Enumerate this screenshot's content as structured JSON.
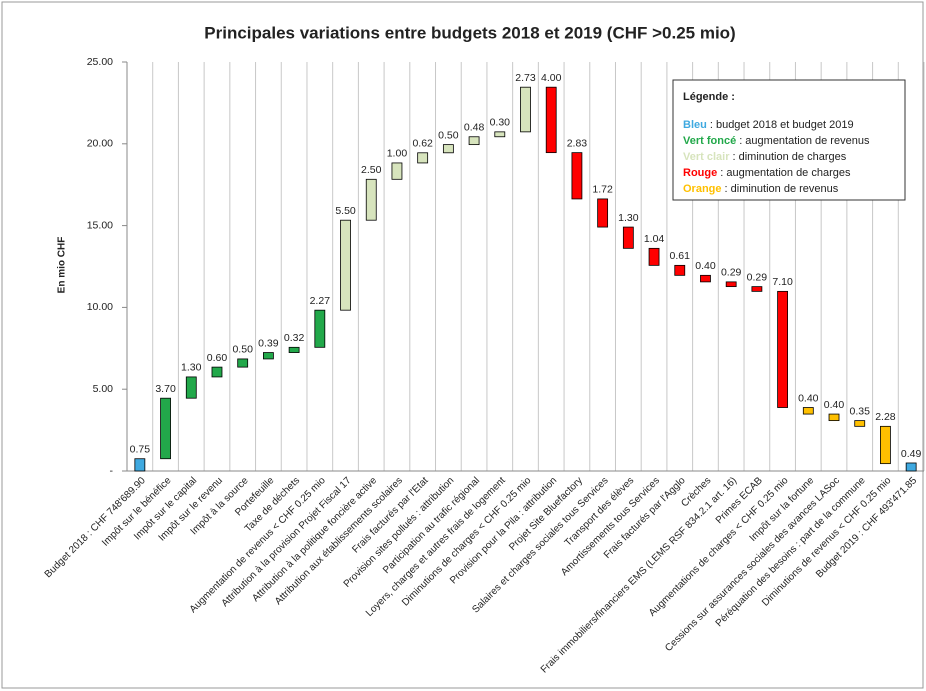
{
  "chart_data": {
    "type": "waterfall",
    "title": "Principales variations entre budgets 2018 et 2019 (CHF >0.25 mio)",
    "y_label": "En mio CHF",
    "categories": [
      "Budget 2018 : CHF 748'689.90",
      "Impôt sur le bénéfice",
      "Impôt sur le capital",
      "Impôt sur le revenu",
      "Impôt à la source",
      "Portefeuille",
      "Taxe de déchets",
      "Augmentation de revenus < CHF 0.25 mio",
      "Attribution à la provision Projet Fiscal 17",
      "Attribution à la politique foncière active",
      "Attribution aux établissements scolaires",
      "Frais facturés par l'Etat",
      "Provision sites pollués : attribution",
      "Participation au trafic régional",
      "Loyers, charges et autres frais de logement",
      "Diminutions de charges < CHF 0.25 mio",
      "Provision pour la Pila : attribution",
      "Projet Site Bluefactory",
      "Salaires et charges sociales tous Services",
      "Transport des élèves",
      "Amortissements tous Services",
      "Frais facturés par l'Agglo",
      "Crèches",
      "Frais immobiliers/financiers EMS (LEMS RSF 834.2.1 art. 16)",
      "Primes ECAB",
      "Augmentations de charges < CHF 0.25 mio",
      "Impôt sur la fortune",
      "Cessions sur assurances sociales des avances LASoc",
      "Péréquation des besoins : part de la commune",
      "Diminutions de revenus < CHF 0.25 mio",
      "Budget 2019 : CHF 493'471.85"
    ],
    "values": [
      0.75,
      3.7,
      1.3,
      0.6,
      0.5,
      0.39,
      0.32,
      2.27,
      5.5,
      2.5,
      1.0,
      0.62,
      0.5,
      0.48,
      0.3,
      2.73,
      4.0,
      2.83,
      1.72,
      1.3,
      1.04,
      0.61,
      0.4,
      0.29,
      0.29,
      7.1,
      0.4,
      0.4,
      0.35,
      2.28,
      0.49
    ],
    "value_labels": [
      "0.75",
      "3.70",
      "1.30",
      "0.60",
      "0.50",
      "0.39",
      "0.32",
      "2.27",
      "5.50",
      "2.50",
      "1.00",
      "0.62",
      "0.50",
      "0.48",
      "0.30",
      "2.73",
      "4.00",
      "2.83",
      "1.72",
      "1.30",
      "1.04",
      "0.61",
      "0.40",
      "0.29",
      "0.29",
      "7.10",
      "0.40",
      "0.40",
      "0.35",
      "2.28",
      "0.49"
    ],
    "colors": [
      "#3fa9e0",
      "#22a84a",
      "#22a84a",
      "#22a84a",
      "#22a84a",
      "#22a84a",
      "#22a84a",
      "#22a84a",
      "#d7e4bd",
      "#d7e4bd",
      "#d7e4bd",
      "#d7e4bd",
      "#d7e4bd",
      "#d7e4bd",
      "#d7e4bd",
      "#d7e4bd",
      "#ff0000",
      "#ff0000",
      "#ff0000",
      "#ff0000",
      "#ff0000",
      "#ff0000",
      "#ff0000",
      "#ff0000",
      "#ff0000",
      "#ff0000",
      "#ffc000",
      "#ffc000",
      "#ffc000",
      "#ffc000",
      "#3fa9e0"
    ],
    "ylim": [
      0,
      25
    ],
    "yticks": [
      {
        "value": 0,
        "label": "-"
      },
      {
        "value": 5,
        "label": "5.00"
      },
      {
        "value": 10,
        "label": "10.00"
      },
      {
        "value": 15,
        "label": "15.00"
      },
      {
        "value": 20,
        "label": "20.00"
      },
      {
        "value": 25,
        "label": "25.00"
      }
    ],
    "legend": {
      "title": "Légende :",
      "items": [
        {
          "label": "Bleu",
          "text": ": budget 2018 et budget 2019",
          "color": "#3fa9e0"
        },
        {
          "label": "Vert foncé",
          "text": ": augmentation de revenus",
          "color": "#22a84a"
        },
        {
          "label": "Vert clair",
          "text": ": diminution de charges",
          "color": "#d7e4bd"
        },
        {
          "label": "Rouge",
          "text": ": augmentation de charges",
          "color": "#ff0000"
        },
        {
          "label": "Orange",
          "text": ": diminution de revenus",
          "color": "#ffc000"
        }
      ]
    }
  }
}
